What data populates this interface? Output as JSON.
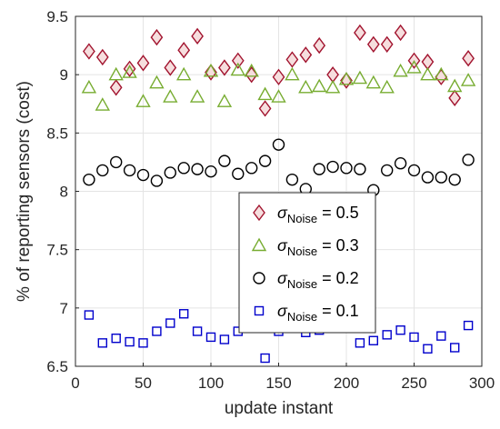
{
  "chart_data": {
    "type": "scatter",
    "xlabel": "update instant",
    "ylabel": "% of reporting sensors (cost)",
    "xlim": [
      0,
      300
    ],
    "ylim": [
      6.5,
      9.5
    ],
    "xticks": [
      "0",
      "50",
      "100",
      "150",
      "200",
      "250",
      "300"
    ],
    "yticks": [
      "6.5",
      "7",
      "7.5",
      "8",
      "8.5",
      "9",
      "9.5"
    ],
    "grid": true,
    "legend_position": "center-right",
    "x": [
      10,
      20,
      30,
      40,
      50,
      60,
      70,
      80,
      90,
      100,
      110,
      120,
      130,
      140,
      150,
      160,
      170,
      180,
      190,
      200,
      210,
      220,
      230,
      240,
      250,
      260,
      270,
      280,
      290
    ],
    "series": [
      {
        "name_symbol": "σ",
        "name_sub": "Noise",
        "name_value": " = 0.5",
        "marker": "diamond",
        "color": "#a2142f",
        "fill": "#f6dede",
        "values": [
          9.2,
          9.15,
          8.89,
          9.05,
          9.1,
          9.32,
          9.06,
          9.21,
          9.33,
          9.02,
          9.06,
          9.12,
          9.0,
          8.71,
          8.98,
          9.13,
          9.17,
          9.25,
          9.0,
          8.95,
          9.36,
          9.26,
          9.26,
          9.36,
          9.12,
          9.11,
          8.98,
          8.8,
          9.14
        ]
      },
      {
        "name_symbol": "σ",
        "name_sub": "Noise",
        "name_value": " = 0.3",
        "marker": "triangle",
        "color": "#77ac30",
        "fill": "none",
        "values": [
          8.89,
          8.74,
          9.0,
          9.02,
          8.77,
          8.93,
          8.81,
          9.0,
          8.81,
          9.03,
          8.77,
          9.04,
          9.03,
          8.83,
          8.81,
          9.0,
          8.89,
          8.9,
          8.89,
          8.96,
          8.97,
          8.93,
          8.89,
          9.03,
          9.06,
          9.0,
          9.0,
          8.9,
          8.95
        ]
      },
      {
        "name_symbol": "σ",
        "name_sub": "Noise",
        "name_value": " = 0.2",
        "marker": "circle",
        "color": "#000000",
        "fill": "none",
        "values": [
          8.1,
          8.18,
          8.25,
          8.18,
          8.14,
          8.09,
          8.16,
          8.2,
          8.19,
          8.17,
          8.26,
          8.15,
          8.2,
          8.26,
          8.4,
          8.1,
          8.02,
          8.19,
          8.21,
          8.2,
          8.19,
          8.01,
          8.18,
          8.24,
          8.18,
          8.12,
          8.12,
          8.1,
          8.27
        ]
      },
      {
        "name_symbol": "σ",
        "name_sub": "Noise",
        "name_value": " = 0.1",
        "marker": "square",
        "color": "#0000cc",
        "fill": "none",
        "values": [
          6.94,
          6.7,
          6.74,
          6.71,
          6.7,
          6.8,
          6.87,
          6.95,
          6.8,
          6.75,
          6.73,
          6.8,
          null,
          6.57,
          6.8,
          6.83,
          6.79,
          6.81,
          null,
          null,
          6.7,
          6.72,
          6.77,
          6.81,
          6.75,
          6.65,
          6.76,
          6.66,
          6.85
        ]
      }
    ]
  }
}
